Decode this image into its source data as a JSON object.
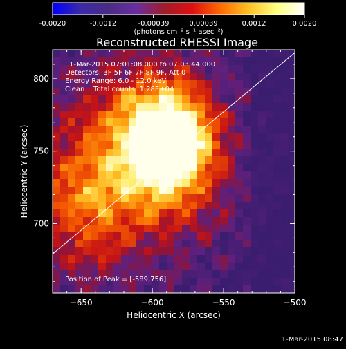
{
  "chart_data": {
    "type": "heatmap",
    "title": "Reconstructed RHESSI Image",
    "colorbar": {
      "ticks": [
        "-0.0020",
        "-0.0012",
        "-0.00039",
        "0.00039",
        "0.0012",
        "0.0020"
      ],
      "unit_label": "(photons cm⁻² s⁻¹ asec⁻²)",
      "range": [
        -0.002,
        0.002
      ],
      "colors": [
        "#0000ff",
        "#3c2aa8",
        "#4a2c84",
        "#6a2ea0",
        "#a01c2a",
        "#e01010",
        "#ff6a00",
        "#ffc020",
        "#ffff80",
        "#ffffff"
      ]
    },
    "xlabel": "Heliocentric X (arcsec)",
    "ylabel": "Heliocentric Y (arcsec)",
    "xticks": [
      -650,
      -600,
      -550,
      -500
    ],
    "yticks": [
      700,
      750,
      800
    ],
    "xlim": [
      -670,
      -500
    ],
    "ylim": [
      652,
      820
    ],
    "annotations": [
      "1-Mar-2015 07:01:08.000 to 07:03:44.000",
      "Detectors: 3F 5F 6F 7F 8F 9F, Att 0",
      "Energy Range: 6.0 - 12.0 keV",
      "Clean    Total counts: 1.28E+04"
    ],
    "peak_text": "Position of Peak = [-589,756]",
    "peak": [
      -589,
      756
    ],
    "limb_line": [
      [
        -670,
        679
      ],
      [
        -500,
        818
      ]
    ],
    "timestamp": "1-Mar-2015 08:47"
  }
}
